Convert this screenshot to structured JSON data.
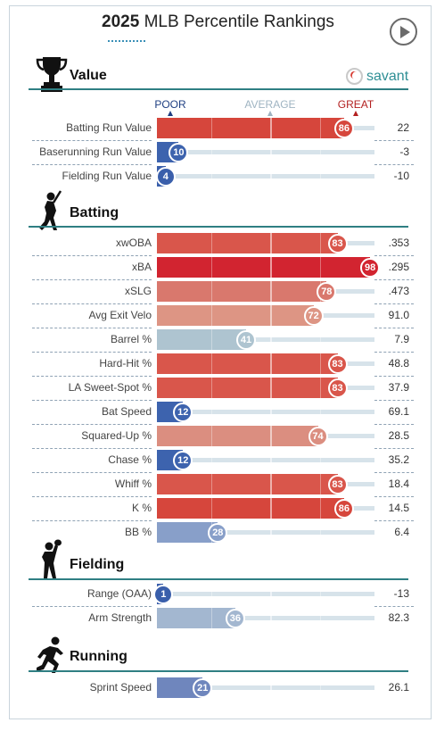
{
  "page_title": {
    "year": "2025",
    "rest": "MLB Percentile Rankings"
  },
  "brand": {
    "name": "savant"
  },
  "scale": {
    "poor": "POOR",
    "average": "AVERAGE",
    "great": "GREAT"
  },
  "colors": {
    "accent": "#2f7f83",
    "poor": "#3a61ad",
    "great": "#d7232f"
  },
  "chart_data": {
    "type": "bar",
    "title": "2025 MLB Percentile Rankings",
    "xlim": [
      0,
      100
    ],
    "sections": [
      {
        "name": "Value",
        "icon": "trophy-icon",
        "metrics": [
          {
            "label": "Batting Run Value",
            "percentile": 86,
            "value": "22",
            "color": "#d6463c"
          },
          {
            "label": "Baserunning Run Value",
            "percentile": 10,
            "value": "-3",
            "color": "#3d63ae"
          },
          {
            "label": "Fielding Run Value",
            "percentile": 4,
            "value": "-10",
            "color": "#3a5fab"
          }
        ]
      },
      {
        "name": "Batting",
        "icon": "batter-icon",
        "metrics": [
          {
            "label": "xwOBA",
            "percentile": 83,
            "value": ".353",
            "color": "#d9564b"
          },
          {
            "label": "xBA",
            "percentile": 98,
            "value": ".295",
            "color": "#d22430"
          },
          {
            "label": "xSLG",
            "percentile": 78,
            "value": ".473",
            "color": "#d9786d"
          },
          {
            "label": "Avg Exit Velo",
            "percentile": 72,
            "value": "91.0",
            "color": "#dd9584"
          },
          {
            "label": "Barrel %",
            "percentile": 41,
            "value": "7.9",
            "color": "#aec4d0"
          },
          {
            "label": "Hard-Hit %",
            "percentile": 83,
            "value": "48.8",
            "color": "#d9564b"
          },
          {
            "label": "LA Sweet-Spot %",
            "percentile": 83,
            "value": "37.9",
            "color": "#d9564b"
          },
          {
            "label": "Bat Speed",
            "percentile": 12,
            "value": "69.1",
            "color": "#3d63ae"
          },
          {
            "label": "Squared-Up %",
            "percentile": 74,
            "value": "28.5",
            "color": "#db8e80"
          },
          {
            "label": "Chase %",
            "percentile": 12,
            "value": "35.2",
            "color": "#3d63ae"
          },
          {
            "label": "Whiff %",
            "percentile": 83,
            "value": "18.4",
            "color": "#d9564b"
          },
          {
            "label": "K %",
            "percentile": 86,
            "value": "14.5",
            "color": "#d6463c"
          },
          {
            "label": "BB %",
            "percentile": 28,
            "value": "6.4",
            "color": "#889fc9"
          }
        ]
      },
      {
        "name": "Fielding",
        "icon": "fielder-icon",
        "metrics": [
          {
            "label": "Range (OAA)",
            "percentile": 1,
            "value": "-13",
            "color": "#3a5fab"
          },
          {
            "label": "Arm Strength",
            "percentile": 36,
            "value": "82.3",
            "color": "#a3b7d0"
          }
        ]
      },
      {
        "name": "Running",
        "icon": "runner-icon",
        "metrics": [
          {
            "label": "Sprint Speed",
            "percentile": 21,
            "value": "26.1",
            "color": "#6f86bd"
          }
        ]
      }
    ]
  }
}
